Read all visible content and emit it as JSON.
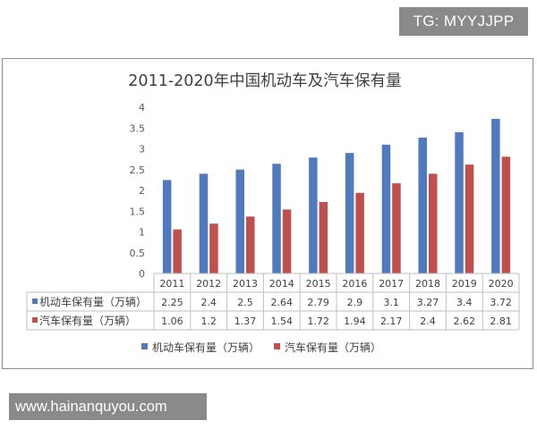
{
  "watermark_top": "TG: MYYJJPP",
  "watermark_bottom": "www.hainanquyou.com",
  "colors": {
    "series_1": "#4f7bbe",
    "series_2": "#c0504d",
    "grid": "#d9d9d9",
    "table_border": "#bfbfbf"
  },
  "chart_data": {
    "type": "bar",
    "title": "2011-2020年中国机动车及汽车保有量",
    "categories": [
      "2011",
      "2012",
      "2013",
      "2014",
      "2015",
      "2016",
      "2017",
      "2018",
      "2019",
      "2020"
    ],
    "series": [
      {
        "name": "机动车保有量（万辆）",
        "values": [
          2.25,
          2.4,
          2.5,
          2.64,
          2.79,
          2.9,
          3.1,
          3.27,
          3.4,
          3.72
        ],
        "labels": [
          "2.25",
          "2.4",
          "2.5",
          "2.64",
          "2.79",
          "2.9",
          "3.1",
          "3.27",
          "3.4",
          "3.72"
        ]
      },
      {
        "name": "汽车保有量（万辆）",
        "values": [
          1.06,
          1.2,
          1.37,
          1.54,
          1.72,
          1.94,
          2.17,
          2.4,
          2.62,
          2.81
        ],
        "labels": [
          "1.06",
          "1.2",
          "1.37",
          "1.54",
          "1.72",
          "1.94",
          "2.17",
          "2.4",
          "2.62",
          "2.81"
        ]
      }
    ],
    "yticks": [
      "0",
      "0.5",
      "1",
      "1.5",
      "2",
      "2.5",
      "3",
      "3.5",
      "4"
    ],
    "ylim": [
      0,
      4
    ],
    "grid": false,
    "data_table": true,
    "legend_position": "bottom"
  }
}
